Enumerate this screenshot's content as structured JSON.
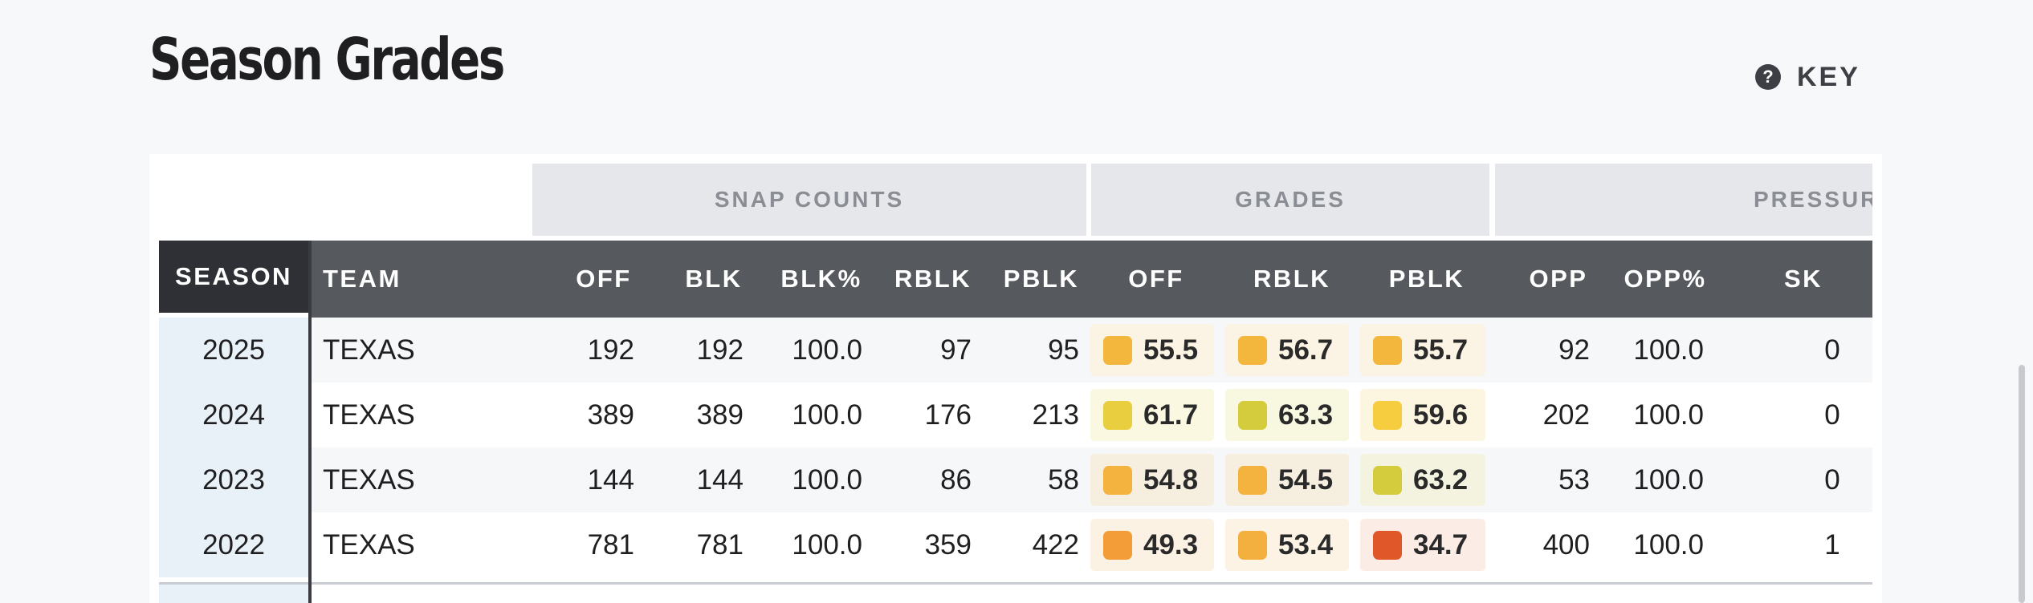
{
  "page": {
    "title": "Season Grades",
    "key_label": "KEY",
    "key_icon": "question-circle-icon"
  },
  "table": {
    "groups": {
      "snap_counts": "SNAP COUNTS",
      "grades": "GRADES",
      "pressure": "PRESSUR"
    },
    "headers": {
      "season": "SEASON",
      "team": "TEAM",
      "off": "OFF",
      "blk": "BLK",
      "blk_pct": "BLK%",
      "rblk": "RBLK",
      "pblk": "PBLK",
      "grade_off": "OFF",
      "grade_rblk": "RBLK",
      "grade_pblk": "PBLK",
      "opp": "OPP",
      "opp_pct": "OPP%",
      "sk": "SK"
    },
    "rows": [
      {
        "season": "2025",
        "team": "TEXAS",
        "off": "192",
        "blk": "192",
        "blk_pct": "100.0",
        "rblk": "97",
        "pblk": "95",
        "grade_off": "55.5",
        "grade_rblk": "56.7",
        "grade_pblk": "55.7",
        "opp": "92",
        "opp_pct": "100.0",
        "sk": "0",
        "colors": {
          "grade_off": "#f3b73e",
          "grade_rblk": "#f3b73e",
          "grade_pblk": "#f3b73e"
        },
        "bg": {
          "grade_off": "#fbf3e3",
          "grade_rblk": "#fbf3e3",
          "grade_pblk": "#fbf3e3"
        }
      },
      {
        "season": "2024",
        "team": "TEXAS",
        "off": "389",
        "blk": "389",
        "blk_pct": "100.0",
        "rblk": "176",
        "pblk": "213",
        "grade_off": "61.7",
        "grade_rblk": "63.3",
        "grade_pblk": "59.6",
        "opp": "202",
        "opp_pct": "100.0",
        "sk": "0",
        "colors": {
          "grade_off": "#e9cf3f",
          "grade_rblk": "#d4cc3c",
          "grade_pblk": "#f5cd3e"
        },
        "bg": {
          "grade_off": "#fbf8e1",
          "grade_rblk": "#f8f8e1",
          "grade_pblk": "#fcf6e0"
        }
      },
      {
        "season": "2023",
        "team": "TEXAS",
        "off": "144",
        "blk": "144",
        "blk_pct": "100.0",
        "rblk": "86",
        "pblk": "58",
        "grade_off": "54.8",
        "grade_rblk": "54.5",
        "grade_pblk": "63.2",
        "opp": "53",
        "opp_pct": "100.0",
        "sk": "0",
        "colors": {
          "grade_off": "#f3b33e",
          "grade_rblk": "#f3b33e",
          "grade_pblk": "#d4cc3c"
        },
        "bg": {
          "grade_off": "#f6efe0",
          "grade_rblk": "#f6efe0",
          "grade_pblk": "#f3f3e0"
        }
      },
      {
        "season": "2022",
        "team": "TEXAS",
        "off": "781",
        "blk": "781",
        "blk_pct": "100.0",
        "rblk": "359",
        "pblk": "422",
        "grade_off": "49.3",
        "grade_rblk": "53.4",
        "grade_pblk": "34.7",
        "opp": "400",
        "opp_pct": "100.0",
        "sk": "1",
        "colors": {
          "grade_off": "#f29d38",
          "grade_rblk": "#f3b03e",
          "grade_pblk": "#e0582a"
        },
        "bg": {
          "grade_off": "#fcf2e4",
          "grade_rblk": "#fcf3e4",
          "grade_pblk": "#fbece5"
        }
      }
    ]
  }
}
